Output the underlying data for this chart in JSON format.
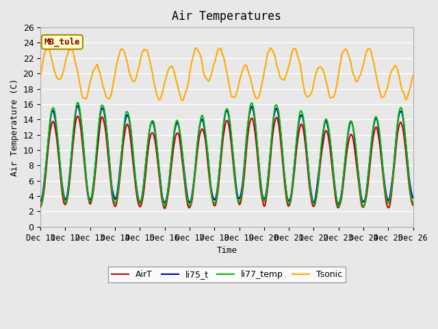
{
  "title": "Air Temperatures",
  "xlabel": "Time",
  "ylabel": "Air Temperature (C)",
  "ylim": [
    0,
    26
  ],
  "yticks": [
    0,
    2,
    4,
    6,
    8,
    10,
    12,
    14,
    16,
    18,
    20,
    22,
    24,
    26
  ],
  "xtick_labels": [
    "Dec 11",
    "Dec 12",
    "Dec 13",
    "Dec 14",
    "Dec 15",
    "Dec 16",
    "Dec 17",
    "Dec 18",
    "Dec 19",
    "Dec 20",
    "Dec 21",
    "Dec 22",
    "Dec 23",
    "Dec 24",
    "Dec 25",
    "Dec 26"
  ],
  "station_label": "MB_tule",
  "colors": {
    "AirT": "#cc0000",
    "li75_t": "#0000cc",
    "li77_temp": "#00bb00",
    "Tsonic": "#ffaa00"
  },
  "line_width": 1.5,
  "background_color": "#e8e8e8",
  "plot_bg_color": "#e8e8e8",
  "grid_color": "#ffffff",
  "legend_entries": [
    "AirT",
    "li75_t",
    "li77_temp",
    "Tsonic"
  ]
}
